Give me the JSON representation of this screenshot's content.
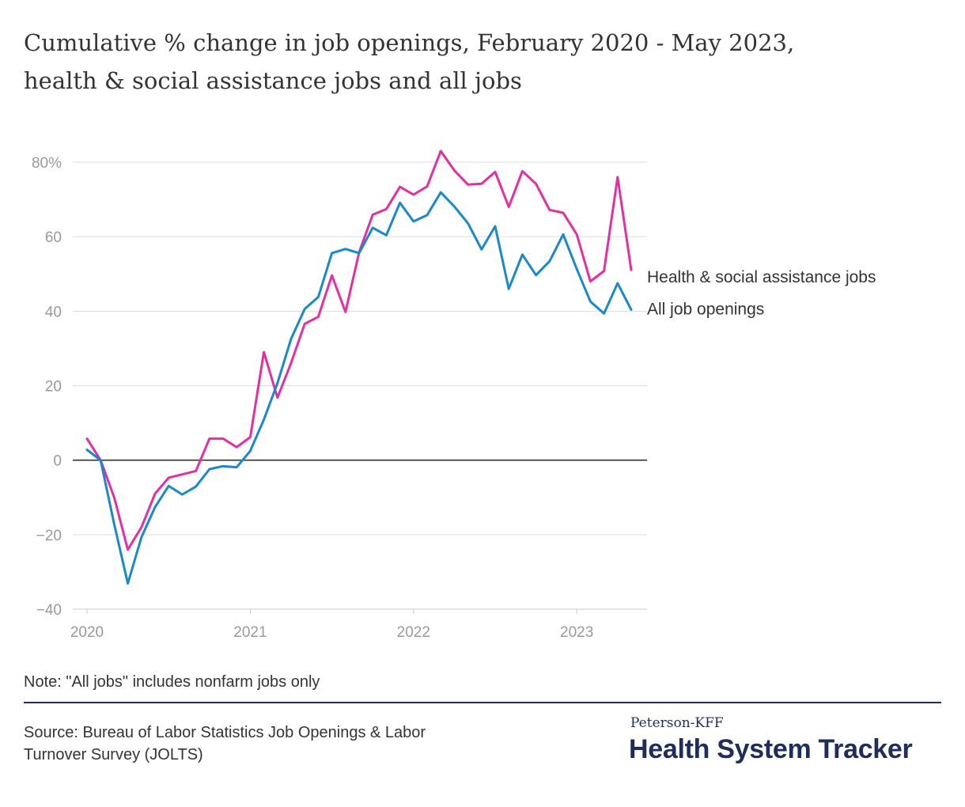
{
  "title_line1": "Cumulative % change in job openings, February 2020 - May 2023,",
  "title_line2": "health & social assistance jobs and all jobs",
  "note": "Note: \"All jobs\" includes nonfarm jobs only",
  "source_line1": "Source: Bureau of Labor Statistics Job Openings & Labor",
  "source_line2": "Turnover Survey (JOLTS)",
  "brand": {
    "top": "Peterson-KFF",
    "main": "Health System Tracker"
  },
  "colors": {
    "health": "#e62ea3",
    "all": "#1a89c9",
    "text": "#333333",
    "tick": "#999999",
    "brand": "#1f2d5c"
  },
  "chart_data": {
    "type": "line",
    "ylim": [
      -40,
      80
    ],
    "yticks": [
      {
        "value": 80,
        "label": "80%"
      },
      {
        "value": 60,
        "label": "60"
      },
      {
        "value": 40,
        "label": "40"
      },
      {
        "value": 20,
        "label": "20"
      },
      {
        "value": 0,
        "label": "0"
      },
      {
        "value": -20,
        "label": "−20"
      },
      {
        "value": -40,
        "label": "−40"
      }
    ],
    "xticks": [
      {
        "date": "2020-01",
        "label": "2020"
      },
      {
        "date": "2021-01",
        "label": "2021"
      },
      {
        "date": "2022-01",
        "label": "2022"
      },
      {
        "date": "2023-01",
        "label": "2023"
      }
    ],
    "x": [
      "2020-01",
      "2020-02",
      "2020-03",
      "2020-04",
      "2020-05",
      "2020-06",
      "2020-07",
      "2020-08",
      "2020-09",
      "2020-10",
      "2020-11",
      "2020-12",
      "2021-01",
      "2021-02",
      "2021-03",
      "2021-04",
      "2021-05",
      "2021-06",
      "2021-07",
      "2021-08",
      "2021-09",
      "2021-10",
      "2021-11",
      "2021-12",
      "2022-01",
      "2022-02",
      "2022-03",
      "2022-04",
      "2022-05",
      "2022-06",
      "2022-07",
      "2022-08",
      "2022-09",
      "2022-10",
      "2022-11",
      "2022-12",
      "2023-01",
      "2023-02",
      "2023-03",
      "2023-04",
      "2023-05"
    ],
    "series": [
      {
        "name": "Health & social assistance jobs",
        "color": "#e62ea3",
        "values": [
          5.8,
          0,
          -10,
          -24,
          -18,
          -9,
          -4.7,
          -3.8,
          -2.9,
          5.8,
          5.8,
          3.5,
          6.2,
          29,
          16.8,
          26.1,
          36.6,
          38.5,
          49.6,
          39.8,
          55.8,
          65.9,
          67.4,
          73.4,
          71.3,
          73.5,
          83,
          77.8,
          74,
          74.2,
          77.4,
          68,
          77.6,
          74.2,
          67.2,
          66.4,
          60.6,
          48,
          50.8,
          76,
          51.1
        ]
      },
      {
        "name": "All job openings",
        "color": "#1a89c9",
        "values": [
          2.8,
          0,
          -17.2,
          -33.1,
          -20.7,
          -12.6,
          -6.9,
          -9.2,
          -7.1,
          -2.4,
          -1.6,
          -1.9,
          2.5,
          10.9,
          20.7,
          32.6,
          40.6,
          43.8,
          55.6,
          56.7,
          55.6,
          62.4,
          60.4,
          69.1,
          64.1,
          65.8,
          71.9,
          68.1,
          63.6,
          56.6,
          62.8,
          46,
          55.2,
          49.7,
          53.4,
          60.6,
          51.3,
          42.6,
          39.4,
          47.5,
          40.4
        ]
      }
    ]
  }
}
